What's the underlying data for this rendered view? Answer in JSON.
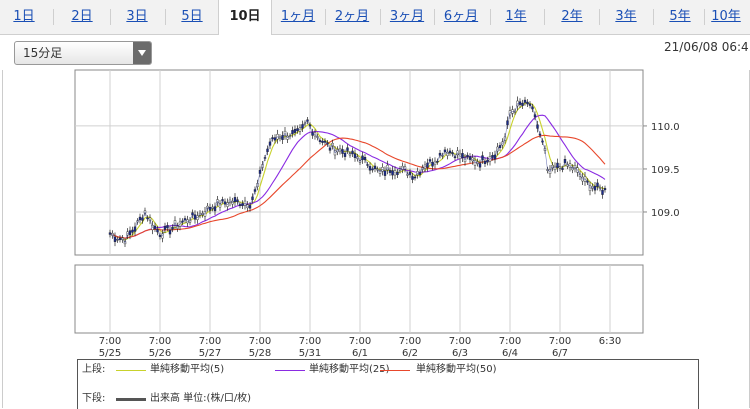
{
  "tabs": [
    {
      "label": "1日"
    },
    {
      "label": "2日"
    },
    {
      "label": "3日"
    },
    {
      "label": "5日"
    },
    {
      "label": "10日",
      "active": true
    },
    {
      "label": "1ヶ月"
    },
    {
      "label": "2ヶ月"
    },
    {
      "label": "3ヶ月"
    },
    {
      "label": "6ヶ月"
    },
    {
      "label": "1年"
    },
    {
      "label": "2年"
    },
    {
      "label": "3年"
    },
    {
      "label": "5年"
    },
    {
      "label": "10年"
    }
  ],
  "interval_select": {
    "value": "15分足"
  },
  "datetime": "21/06/08 06:4",
  "chart_data": {
    "type": "line",
    "y_axis": {
      "ticks": [
        110.0,
        109.5,
        109.0
      ],
      "tick_labels": [
        "110.0",
        "109.5",
        "109.0"
      ],
      "range": [
        108.5,
        110.65
      ]
    },
    "x_axis": {
      "ticks": [
        {
          "time": "7:00",
          "date": "5/25"
        },
        {
          "time": "7:00",
          "date": "5/26"
        },
        {
          "time": "7:00",
          "date": "5/27"
        },
        {
          "time": "7:00",
          "date": "5/28"
        },
        {
          "time": "7:00",
          "date": "5/31"
        },
        {
          "time": "7:00",
          "date": "6/1"
        },
        {
          "time": "7:00",
          "date": "6/2"
        },
        {
          "time": "7:00",
          "date": "6/3"
        },
        {
          "time": "7:00",
          "date": "6/4"
        },
        {
          "time": "7:00",
          "date": "6/7"
        },
        {
          "time": "6:30",
          "date": ""
        }
      ]
    },
    "series_price": [
      [
        0,
        108.75
      ],
      [
        0.15,
        108.7
      ],
      [
        0.3,
        108.68
      ],
      [
        0.5,
        108.82
      ],
      [
        0.7,
        109.0
      ],
      [
        0.85,
        108.85
      ],
      [
        1.0,
        108.75
      ],
      [
        1.2,
        108.8
      ],
      [
        1.5,
        108.9
      ],
      [
        1.8,
        108.97
      ],
      [
        2.0,
        109.05
      ],
      [
        2.2,
        109.1
      ],
      [
        2.5,
        109.12
      ],
      [
        2.8,
        109.1
      ],
      [
        2.95,
        109.3
      ],
      [
        3.05,
        109.55
      ],
      [
        3.2,
        109.8
      ],
      [
        3.35,
        109.88
      ],
      [
        3.6,
        109.9
      ],
      [
        3.8,
        109.92
      ],
      [
        3.95,
        110.05
      ],
      [
        4.05,
        109.95
      ],
      [
        4.2,
        109.85
      ],
      [
        4.4,
        109.75
      ],
      [
        4.7,
        109.7
      ],
      [
        5.0,
        109.62
      ],
      [
        5.2,
        109.55
      ],
      [
        5.4,
        109.45
      ],
      [
        5.6,
        109.5
      ],
      [
        5.9,
        109.48
      ],
      [
        6.1,
        109.42
      ],
      [
        6.3,
        109.55
      ],
      [
        6.5,
        109.6
      ],
      [
        6.7,
        109.72
      ],
      [
        6.9,
        109.68
      ],
      [
        7.1,
        109.62
      ],
      [
        7.4,
        109.58
      ],
      [
        7.7,
        109.68
      ],
      [
        7.9,
        109.85
      ],
      [
        8.0,
        110.15
      ],
      [
        8.2,
        110.25
      ],
      [
        8.4,
        110.25
      ],
      [
        8.55,
        110.0
      ],
      [
        8.7,
        109.7
      ],
      [
        8.75,
        109.45
      ],
      [
        8.9,
        109.5
      ],
      [
        9.1,
        109.55
      ],
      [
        9.3,
        109.5
      ],
      [
        9.5,
        109.35
      ],
      [
        9.7,
        109.28
      ],
      [
        9.9,
        109.25
      ]
    ],
    "series": [
      {
        "name": "単純移動平均(5)",
        "color": "#c8d22c",
        "period": 5
      },
      {
        "name": "単純移動平均(25)",
        "color": "#8a2be2",
        "period": 25
      },
      {
        "name": "単純移動平均(50)",
        "color": "#e8482c",
        "period": 50
      }
    ]
  },
  "legend": {
    "upper_label": "上段:",
    "lower_label": "下段:",
    "volume_label": "出来高 単位:(株/口/枚)",
    "volume_color": "#555555"
  }
}
